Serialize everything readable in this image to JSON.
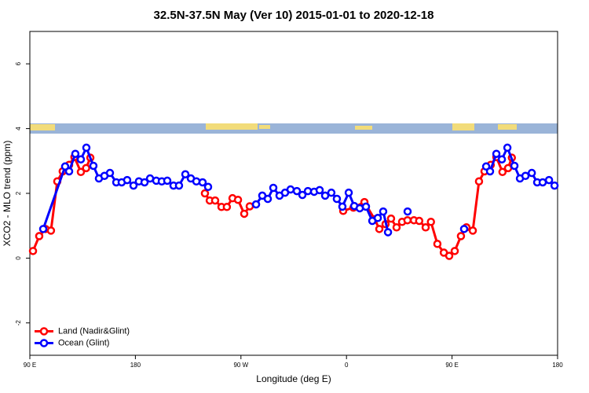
{
  "chart_data": {
    "type": "line",
    "title": "32.5N-37.5N May (Ver 10)   2015-01-01 to 2020-12-18",
    "x_label": "Longitude (deg E)",
    "y_label": "XCO2 - MLO trend (ppm)",
    "xlim": [
      90,
      540
    ],
    "ylim": [
      -3,
      7
    ],
    "xticks": [
      {
        "value": 90,
        "label": "90 E"
      },
      180,
      {
        "value": 270,
        "label": "90 W"
      },
      {
        "value": 360,
        "label": "0"
      },
      {
        "value": 450,
        "label": "90 E"
      },
      {
        "value": 540,
        "label": "180"
      }
    ],
    "yticks": [
      -2,
      0,
      2,
      4,
      6
    ],
    "legend": "bottomleft",
    "series": [
      {
        "name": "Land (Nadir&Glint)",
        "color": "#ff0000",
        "x": [
          92.7,
          98,
          103.4,
          108,
          113.4,
          118,
          123.5,
          128,
          133.5,
          138,
          141.6,
          190,
          239.3,
          243.4,
          248,
          253.4,
          258,
          262.8,
          267.5,
          272.8,
          277.5,
          320,
          357.2,
          365.9,
          375.3,
          384,
          388,
          393.3,
          398,
          402.7,
          407.4,
          412,
          417.5,
          422,
          427.5,
          432,
          437.5,
          443,
          447.6,
          452.3,
          457.6,
          462.3,
          467.7,
          473,
          477.7,
          483,
          487.8,
          493,
          497.8,
          501
        ],
        "values": [
          0.22,
          0.68,
          0.9,
          0.85,
          2.37,
          2.68,
          2.88,
          3.12,
          2.66,
          2.78,
          3.1,
          null,
          2.0,
          1.78,
          1.78,
          1.58,
          1.58,
          1.85,
          1.8,
          1.37,
          1.6,
          null,
          1.46,
          1.56,
          1.73,
          1.2,
          0.9,
          1.05,
          1.22,
          0.95,
          1.12,
          1.17,
          1.17,
          1.15,
          0.95,
          1.12,
          0.44,
          0.17,
          0.07,
          0.22,
          0.68,
          0.95,
          0.85,
          2.37,
          2.68,
          2.88,
          3.12,
          2.66,
          2.78,
          3.1
        ]
      },
      {
        "name": "Ocean (Glint)",
        "color": "#0000ff",
        "x": [
          101.4,
          120.1,
          123.5,
          128.8,
          133.5,
          138.2,
          144.2,
          148.9,
          153.6,
          158.3,
          163.7,
          168.3,
          173,
          178.4,
          183,
          187.8,
          192.5,
          197.8,
          202.5,
          207.2,
          212.5,
          217.2,
          222.6,
          227.3,
          232,
          237.3,
          242,
          262,
          282.9,
          288.2,
          292.9,
          297.6,
          302.9,
          307.6,
          312.3,
          317.7,
          322.4,
          327.1,
          332.4,
          337.1,
          341.8,
          347.1,
          351.8,
          356.5,
          361.9,
          366.6,
          371.3,
          376.6,
          382,
          386.7,
          391.3,
          395.4,
          404,
          412.1,
          436,
          460.3,
          470,
          479.1,
          482.4,
          487.8,
          492.5,
          497.2,
          503.2,
          507.9,
          512.6,
          518,
          522.6,
          527.3,
          532.7,
          537.4
        ],
        "values": [
          0.9,
          2.83,
          2.68,
          3.22,
          3.05,
          3.41,
          2.85,
          2.46,
          2.54,
          2.63,
          2.34,
          2.34,
          2.41,
          2.24,
          2.37,
          2.34,
          2.46,
          2.39,
          2.37,
          2.39,
          2.24,
          2.24,
          2.59,
          2.46,
          2.37,
          2.34,
          2.2,
          null,
          1.66,
          1.93,
          1.83,
          2.17,
          1.93,
          2.02,
          2.12,
          2.07,
          1.95,
          2.07,
          2.05,
          2.1,
          1.93,
          2.02,
          1.83,
          1.59,
          2.02,
          1.61,
          1.54,
          1.59,
          1.15,
          1.24,
          1.44,
          0.8,
          null,
          1.44,
          null,
          0.9,
          null,
          2.83,
          2.68,
          3.22,
          3.05,
          3.41,
          2.85,
          2.46,
          2.54,
          2.63,
          2.34,
          2.34,
          2.41,
          2.24
        ]
      }
    ]
  }
}
